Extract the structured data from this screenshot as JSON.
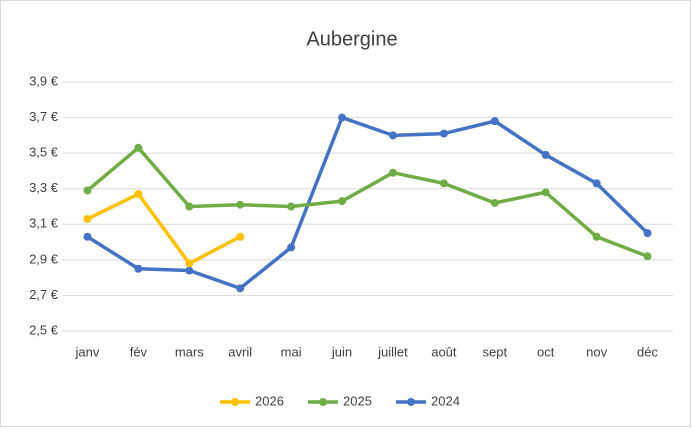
{
  "chart_data": {
    "type": "line",
    "title": "Aubergine",
    "categories": [
      "janv",
      "fév",
      "mars",
      "avril",
      "mai",
      "juin",
      "juillet",
      "août",
      "sept",
      "oct",
      "nov",
      "déc"
    ],
    "series": [
      {
        "name": "2026",
        "color": "#ffc000",
        "values": [
          3.13,
          3.27,
          2.88,
          3.03,
          null,
          null,
          null,
          null,
          null,
          null,
          null,
          null
        ]
      },
      {
        "name": "2025",
        "color": "#70ad47",
        "values": [
          3.29,
          3.53,
          3.2,
          3.21,
          3.2,
          3.23,
          3.39,
          3.33,
          3.22,
          3.28,
          3.03,
          2.92
        ]
      },
      {
        "name": "2024",
        "color": "#4472c4",
        "values": [
          3.03,
          2.85,
          2.84,
          2.74,
          2.97,
          3.7,
          3.6,
          3.61,
          3.68,
          3.49,
          3.33,
          3.05
        ]
      }
    ],
    "ylim": [
      2.5,
      3.9
    ],
    "yticks": [
      {
        "value": 2.5,
        "label": "2,5 €"
      },
      {
        "value": 2.7,
        "label": "2,7 €"
      },
      {
        "value": 2.9,
        "label": "2,9 €"
      },
      {
        "value": 3.1,
        "label": "3,1 €"
      },
      {
        "value": 3.3,
        "label": "3,3 €"
      },
      {
        "value": 3.5,
        "label": "3,5 €"
      },
      {
        "value": 3.7,
        "label": "3,7 €"
      },
      {
        "value": 3.9,
        "label": "3,9 €"
      }
    ],
    "grid": true,
    "legend": "bottom"
  }
}
